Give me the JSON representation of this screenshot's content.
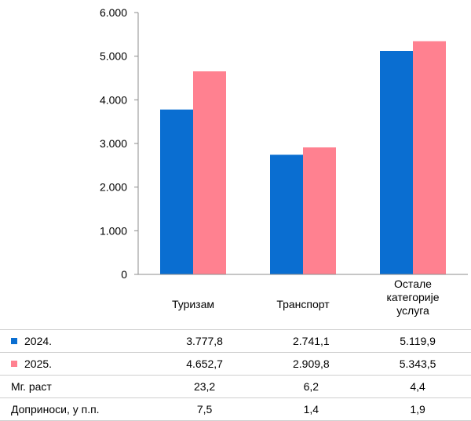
{
  "chart_data": {
    "type": "bar",
    "categories": [
      "Туризам",
      "Транспорт",
      "Остале категорије услуга"
    ],
    "series": [
      {
        "name": "2024.",
        "color": "#0a6ed1",
        "values": [
          3777.8,
          2741.1,
          5119.9
        ]
      },
      {
        "name": "2025.",
        "color": "#ff8190",
        "values": [
          4652.7,
          2909.8,
          5343.5
        ]
      }
    ],
    "ylim": [
      0,
      6000
    ],
    "yticks": [
      "0",
      "1.000",
      "2.000",
      "3.000",
      "4.000",
      "5.000",
      "6.000"
    ],
    "grid": false,
    "legend": "table"
  },
  "categories_display": [
    "Туризам",
    "Транспорт",
    "Остале\nкатегорије\nуслуга"
  ],
  "table": {
    "rows": [
      {
        "label": "2024.",
        "swatch": "#0a6ed1",
        "values": [
          "3.777,8",
          "2.741,1",
          "5.119,9"
        ]
      },
      {
        "label": "2025.",
        "swatch": "#ff8190",
        "values": [
          "4.652,7",
          "2.909,8",
          "5.343,5"
        ]
      },
      {
        "label": "Мг. раст",
        "swatch": null,
        "values": [
          "23,2",
          "6,2",
          "4,4"
        ]
      },
      {
        "label": "Доприноси, у п.п.",
        "swatch": null,
        "values": [
          "7,5",
          "1,4",
          "1,9"
        ]
      }
    ]
  }
}
